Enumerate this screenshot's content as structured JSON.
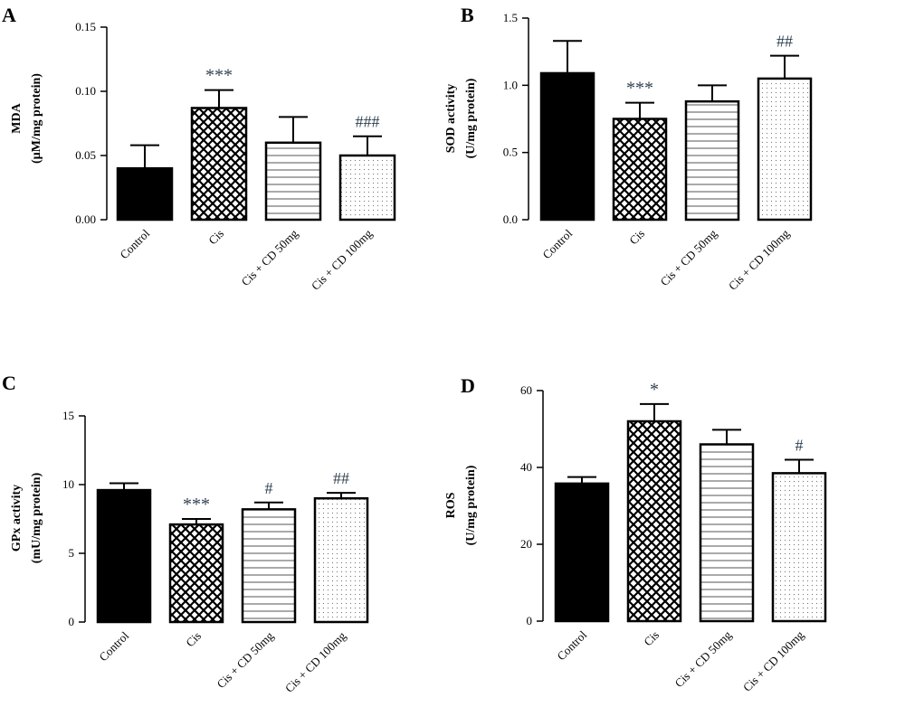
{
  "chart_data": [
    {
      "type": "bar",
      "panel": "A",
      "ylabel": [
        "MDA",
        "(µM/mg protein)"
      ],
      "categories": [
        "Control",
        "Cis",
        "Cis + CD 50mg",
        "Cis + CD 100mg"
      ],
      "values": [
        0.04,
        0.087,
        0.06,
        0.05
      ],
      "errors": [
        0.018,
        0.014,
        0.02,
        0.015
      ],
      "significance": [
        "",
        "***",
        "",
        "###"
      ],
      "ylim": [
        0,
        0.15
      ],
      "yticks": [
        0.0,
        0.05,
        0.1,
        0.15
      ],
      "ytick_labels": [
        "0.00",
        "0.05",
        "0.10",
        "0.15"
      ],
      "patterns": [
        "solid",
        "crosshatch",
        "hlines",
        "dots"
      ],
      "grid": false
    },
    {
      "type": "bar",
      "panel": "B",
      "ylabel": [
        "SOD activity",
        "(U/mg protein)"
      ],
      "categories": [
        "Control",
        "Cis",
        "Cis + CD 50mg",
        "Cis + CD 100mg"
      ],
      "values": [
        1.09,
        0.75,
        0.88,
        1.05
      ],
      "errors": [
        0.24,
        0.12,
        0.12,
        0.17
      ],
      "significance": [
        "",
        "***",
        "",
        "##"
      ],
      "ylim": [
        0,
        1.5
      ],
      "yticks": [
        0.0,
        0.5,
        1.0,
        1.5
      ],
      "ytick_labels": [
        "0.0",
        "0.5",
        "1.0",
        "1.5"
      ],
      "patterns": [
        "solid",
        "crosshatch",
        "hlines",
        "dots"
      ],
      "grid": false
    },
    {
      "type": "bar",
      "panel": "C",
      "ylabel": [
        "GPx activity",
        "(mU/mg protein)"
      ],
      "categories": [
        "Control",
        "Cis",
        "Cis + CD 50mg",
        "Cis + CD 100mg"
      ],
      "values": [
        9.6,
        7.1,
        8.2,
        9.0
      ],
      "errors": [
        0.5,
        0.4,
        0.5,
        0.4
      ],
      "significance": [
        "",
        "***",
        "#",
        "##"
      ],
      "ylim": [
        0,
        15
      ],
      "yticks": [
        0,
        5,
        10,
        15
      ],
      "ytick_labels": [
        "0",
        "5",
        "10",
        "15"
      ],
      "patterns": [
        "solid",
        "crosshatch",
        "hlines",
        "dots"
      ],
      "grid": false
    },
    {
      "type": "bar",
      "panel": "D",
      "ylabel": [
        "ROS",
        "(U/mg protein)"
      ],
      "categories": [
        "Control",
        "Cis",
        "Cis + CD 50mg",
        "Cis + CD 100mg"
      ],
      "values": [
        35.8,
        52.0,
        46.0,
        38.5
      ],
      "errors": [
        1.7,
        4.5,
        3.8,
        3.5
      ],
      "significance": [
        "",
        "*",
        "",
        "#"
      ],
      "ylim": [
        0,
        60
      ],
      "yticks": [
        0,
        20,
        40,
        60
      ],
      "ytick_labels": [
        "0",
        "20",
        "40",
        "60"
      ],
      "patterns": [
        "solid",
        "crosshatch",
        "hlines",
        "dots"
      ],
      "grid": false
    }
  ]
}
